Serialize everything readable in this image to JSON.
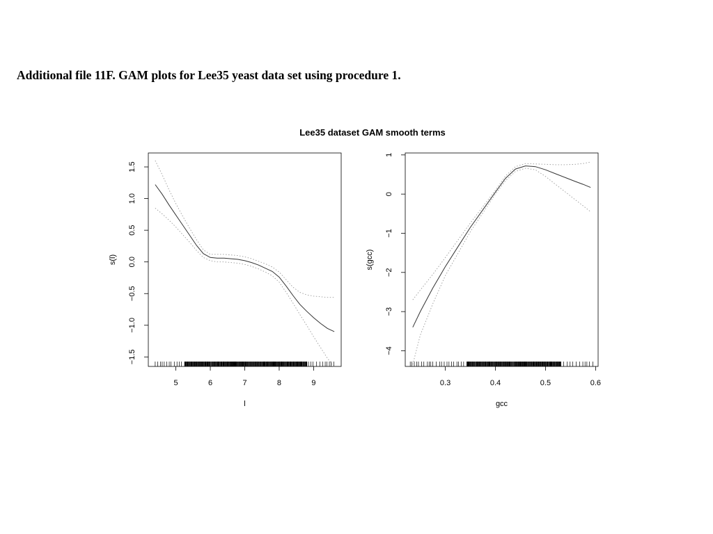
{
  "page": {
    "caption": "Additional file 11F. GAM plots for Lee35 yeast data set using procedure 1."
  },
  "figure": {
    "main_title": "Lee35 dataset GAM smooth terms"
  },
  "chart_data": [
    {
      "type": "line",
      "xlabel": "l",
      "ylabel": "s(l)",
      "xlim": [
        4.2,
        9.8
      ],
      "ylim": [
        -1.65,
        1.72
      ],
      "xticks": [
        5,
        6,
        7,
        8,
        9
      ],
      "yticks": [
        -1.5,
        -1.0,
        -0.5,
        0.0,
        0.5,
        1.0,
        1.5
      ],
      "ytick_labels": [
        "−1.5",
        "−1.0",
        "−0.5",
        "0.0",
        "0.5",
        "1.0",
        "1.5"
      ],
      "grid": false,
      "series": [
        {
          "role": "estimate",
          "style": "solid",
          "x": [
            4.4,
            4.6,
            4.8,
            5.0,
            5.2,
            5.4,
            5.6,
            5.8,
            6.0,
            6.2,
            6.4,
            6.6,
            6.8,
            7.0,
            7.2,
            7.4,
            7.6,
            7.8,
            8.0,
            8.2,
            8.4,
            8.6,
            8.8,
            9.0,
            9.2,
            9.4,
            9.6
          ],
          "y": [
            1.22,
            1.07,
            0.9,
            0.74,
            0.58,
            0.42,
            0.26,
            0.13,
            0.07,
            0.06,
            0.06,
            0.05,
            0.04,
            0.02,
            -0.01,
            -0.05,
            -0.1,
            -0.15,
            -0.24,
            -0.38,
            -0.53,
            -0.67,
            -0.78,
            -0.88,
            -0.97,
            -1.05,
            -1.1
          ]
        },
        {
          "role": "upper-band",
          "style": "dotted",
          "x": [
            4.4,
            4.6,
            4.8,
            5.0,
            5.2,
            5.4,
            5.6,
            5.8,
            6.0,
            6.2,
            6.4,
            6.6,
            6.8,
            7.0,
            7.2,
            7.4,
            7.6,
            7.8,
            8.0,
            8.2,
            8.4,
            8.6,
            8.8,
            9.0,
            9.2,
            9.4,
            9.6
          ],
          "y": [
            1.6,
            1.38,
            1.14,
            0.92,
            0.72,
            0.53,
            0.35,
            0.19,
            0.12,
            0.12,
            0.12,
            0.11,
            0.1,
            0.08,
            0.05,
            0.01,
            -0.03,
            -0.08,
            -0.16,
            -0.28,
            -0.4,
            -0.48,
            -0.52,
            -0.54,
            -0.55,
            -0.56,
            -0.56
          ]
        },
        {
          "role": "lower-band",
          "style": "dotted",
          "x": [
            4.4,
            4.6,
            4.8,
            5.0,
            5.2,
            5.4,
            5.6,
            5.8,
            6.0,
            6.2,
            6.4,
            6.6,
            6.8,
            7.0,
            7.2,
            7.4,
            7.6,
            7.8,
            8.0,
            8.2,
            8.4,
            8.6,
            8.8,
            9.0,
            9.2,
            9.4,
            9.6
          ],
          "y": [
            0.85,
            0.76,
            0.66,
            0.55,
            0.43,
            0.31,
            0.18,
            0.07,
            0.02,
            0.0,
            0.0,
            -0.01,
            -0.02,
            -0.04,
            -0.07,
            -0.11,
            -0.16,
            -0.22,
            -0.32,
            -0.48,
            -0.65,
            -0.83,
            -1.0,
            -1.18,
            -1.35,
            -1.52,
            -1.66
          ]
        }
      ],
      "rug": {
        "from": 4.4,
        "to": 9.6,
        "dense_from": 5.2,
        "dense_to": 8.8
      }
    },
    {
      "type": "line",
      "xlabel": "gcc",
      "ylabel": "s(gcc)",
      "xlim": [
        0.22,
        0.605
      ],
      "ylim": [
        -4.4,
        1.05
      ],
      "xticks": [
        0.3,
        0.4,
        0.5,
        0.6
      ],
      "yticks": [
        -4,
        -3,
        -2,
        -1,
        0,
        1
      ],
      "ytick_labels": [
        "−4",
        "−3",
        "−2",
        "−1",
        "0",
        "1"
      ],
      "grid": false,
      "series": [
        {
          "role": "estimate",
          "style": "solid",
          "x": [
            0.235,
            0.25,
            0.275,
            0.3,
            0.325,
            0.35,
            0.375,
            0.4,
            0.42,
            0.44,
            0.46,
            0.48,
            0.5,
            0.52,
            0.54,
            0.56,
            0.575,
            0.59
          ],
          "y": [
            -3.4,
            -3.0,
            -2.4,
            -1.85,
            -1.35,
            -0.85,
            -0.4,
            0.05,
            0.4,
            0.64,
            0.72,
            0.7,
            0.62,
            0.52,
            0.42,
            0.32,
            0.25,
            0.17
          ]
        },
        {
          "role": "upper-band",
          "style": "dotted",
          "x": [
            0.235,
            0.25,
            0.275,
            0.3,
            0.325,
            0.35,
            0.375,
            0.4,
            0.42,
            0.44,
            0.46,
            0.48,
            0.5,
            0.52,
            0.54,
            0.56,
            0.575,
            0.59
          ],
          "y": [
            -2.7,
            -2.45,
            -2.05,
            -1.62,
            -1.18,
            -0.74,
            -0.32,
            0.1,
            0.46,
            0.7,
            0.78,
            0.77,
            0.76,
            0.75,
            0.75,
            0.76,
            0.78,
            0.82
          ]
        },
        {
          "role": "lower-band",
          "style": "dotted",
          "x": [
            0.235,
            0.25,
            0.275,
            0.3,
            0.325,
            0.35,
            0.375,
            0.4,
            0.42,
            0.44,
            0.46,
            0.48,
            0.5,
            0.52,
            0.54,
            0.56,
            0.575,
            0.59
          ],
          "y": [
            -4.35,
            -3.6,
            -2.8,
            -2.08,
            -1.52,
            -0.96,
            -0.48,
            0.0,
            0.34,
            0.58,
            0.66,
            0.62,
            0.45,
            0.25,
            0.05,
            -0.15,
            -0.3,
            -0.45
          ]
        }
      ],
      "rug": {
        "from": 0.23,
        "to": 0.595,
        "dense_from": 0.34,
        "dense_to": 0.53
      }
    }
  ]
}
